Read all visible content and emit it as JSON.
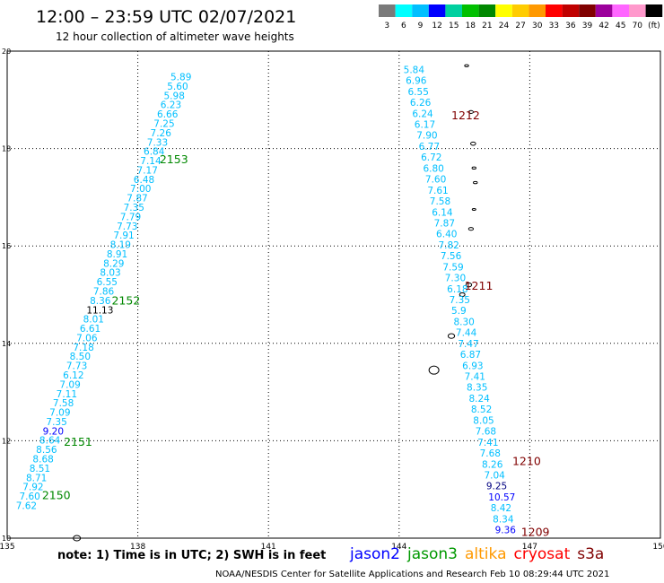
{
  "header": {
    "title": "12:00 – 23:59 UTC 02/07/2021",
    "subtitle": "12 hour collection of altimeter wave heights"
  },
  "legend": {
    "colors": [
      "#7a7a7a",
      "#00ffff",
      "#00bfff",
      "#0000ff",
      "#00d0a0",
      "#00c000",
      "#008800",
      "#ffff00",
      "#ffcc00",
      "#ff9900",
      "#ff0000",
      "#c00000",
      "#800000",
      "#9c009c",
      "#ff66ff",
      "#ff99cc",
      "#000000"
    ],
    "labels": [
      "3",
      "6",
      "9",
      "12",
      "15",
      "18",
      "21",
      "24",
      "27",
      "30",
      "33",
      "36",
      "39",
      "42",
      "45",
      "70",
      "(ft)"
    ]
  },
  "map": {
    "lon_range": [
      135,
      150
    ],
    "lat_range": [
      10,
      20
    ],
    "x_ticks": [
      "135",
      "138",
      "141",
      "144",
      "147",
      "150"
    ],
    "y_ticks": [
      "20",
      "18",
      "16",
      "14",
      "12",
      "10"
    ]
  },
  "tracks": [
    {
      "label": "2153",
      "label_lon": 138.5,
      "label_lat": 17.7,
      "color": "#008800"
    },
    {
      "label": "2152",
      "label_lon": 137.4,
      "label_lat": 14.8,
      "color": "#008800"
    },
    {
      "label": "2151",
      "label_lon": 136.3,
      "label_lat": 11.9,
      "color": "#008800"
    },
    {
      "label": "2150",
      "label_lon": 135.8,
      "label_lat": 10.8,
      "color": "#008800"
    },
    {
      "label": "1212",
      "label_lon": 145.2,
      "label_lat": 18.6,
      "color": "#800000"
    },
    {
      "label": "1211",
      "label_lon": 145.5,
      "label_lat": 15.1,
      "color": "#800000"
    },
    {
      "label": "1210",
      "label_lon": 146.6,
      "label_lat": 11.5,
      "color": "#800000"
    },
    {
      "label": "1209",
      "label_lon": 146.8,
      "label_lat": 10.05,
      "color": "#800000"
    }
  ],
  "obs_west": {
    "start_lon": 138.75,
    "start_lat": 19.4,
    "end_lon": 135.2,
    "end_lat": 10.6,
    "values": [
      "5.89",
      "5.60",
      "5.98",
      "6.23",
      "6.66",
      "7.25",
      "7.26",
      "7.33",
      "6.84",
      "7.14",
      "7.17",
      "6.48",
      "7.00",
      "7.87",
      "7.35",
      "7.79",
      "7.73",
      "7.91",
      "8.19",
      "8.91",
      "8.29",
      "8.03",
      "6.55",
      "7.86",
      "8.36",
      "11.13",
      "8.01",
      "6.61",
      "7.06",
      "7.18",
      "8.50",
      "7.73",
      "6.12",
      "7.09",
      "7.11",
      "7.58",
      "7.09",
      "7.35",
      "9.20",
      "8.64",
      "8.56",
      "8.68",
      "8.51",
      "8.71",
      "7.92",
      "7.60",
      "7.62"
    ],
    "colors": [
      "#00bfff",
      "#00bfff",
      "#00bfff",
      "#00bfff",
      "#00bfff",
      "#00bfff",
      "#00bfff",
      "#00bfff",
      "#00bfff",
      "#00bfff",
      "#00bfff",
      "#00bfff",
      "#00bfff",
      "#00bfff",
      "#00bfff",
      "#00bfff",
      "#00bfff",
      "#00bfff",
      "#00bfff",
      "#00bfff",
      "#00bfff",
      "#00bfff",
      "#00bfff",
      "#00bfff",
      "#00bfff",
      "#000000",
      "#00bfff",
      "#00bfff",
      "#00bfff",
      "#00bfff",
      "#00bfff",
      "#00bfff",
      "#00bfff",
      "#00bfff",
      "#00bfff",
      "#00bfff",
      "#00bfff",
      "#00bfff",
      "#0000ff",
      "#00bfff",
      "#00bfff",
      "#00bfff",
      "#00bfff",
      "#00bfff",
      "#00bfff",
      "#00bfff",
      "#00bfff"
    ]
  },
  "obs_east": {
    "start_lon": 144.1,
    "start_lat": 19.55,
    "end_lon": 146.2,
    "end_lat": 10.1,
    "values": [
      "5.84",
      "6.96",
      "6.55",
      "6.26",
      "6.24",
      "6.17",
      "7.90",
      "6.77",
      "6.72",
      "6.80",
      "7.60",
      "7.61",
      "7.58",
      "6.14",
      "7.87",
      "6.40",
      "7.82",
      "7.56",
      "7.59",
      "7.30",
      "6.18",
      "7.35",
      "5.9",
      "8.30",
      "7.44",
      "7.47",
      "6.87",
      "6.93",
      "7.41",
      "8.35",
      "8.24",
      "8.52",
      "8.05",
      "7.68",
      "7.41",
      "7.68",
      "8.26",
      "7.04",
      "9.25",
      "10.57",
      "8.42",
      "8.34",
      "9.36"
    ],
    "colors": [
      "#00bfff",
      "#00bfff",
      "#00bfff",
      "#00bfff",
      "#00bfff",
      "#00bfff",
      "#00bfff",
      "#00bfff",
      "#00bfff",
      "#00bfff",
      "#00bfff",
      "#00bfff",
      "#00bfff",
      "#00bfff",
      "#00bfff",
      "#00bfff",
      "#00bfff",
      "#00bfff",
      "#00bfff",
      "#00bfff",
      "#00bfff",
      "#00bfff",
      "#00bfff",
      "#00bfff",
      "#00bfff",
      "#00bfff",
      "#00bfff",
      "#00bfff",
      "#00bfff",
      "#00bfff",
      "#00bfff",
      "#00bfff",
      "#00bfff",
      "#00bfff",
      "#00bfff",
      "#00bfff",
      "#00bfff",
      "#00bfff",
      "#000080",
      "#0000ff",
      "#00bfff",
      "#00bfff",
      "#0000ff"
    ]
  },
  "footer": {
    "note": "note:  1) Time is in UTC;  2) SWH is in feet",
    "missions": [
      {
        "name": "jason2",
        "color": "#0000ff"
      },
      {
        "name": "jason3",
        "color": "#009900"
      },
      {
        "name": "altika",
        "color": "#ff9900"
      },
      {
        "name": "cryosat",
        "color": "#ff0000"
      },
      {
        "name": "s3a",
        "color": "#800000"
      }
    ],
    "credit": "NOAA/NESDIS Center for Satellite Applications and Research     Feb 10 08:29:44 UTC 2021"
  }
}
